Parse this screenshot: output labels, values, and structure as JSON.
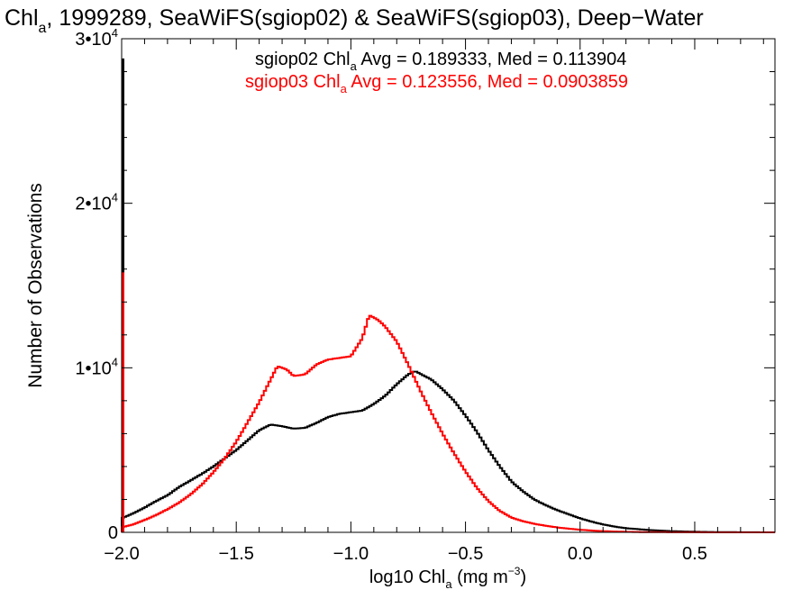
{
  "chart_data": {
    "type": "line",
    "style": "step histogram",
    "title": {
      "prefix": "Chl",
      "sub": "a",
      "suffix": ", 1999289, SeaWiFS(sgiop02) & SeaWiFS(sgiop03), Deep−Water"
    },
    "xlabel": {
      "prefix": "log10 Chl",
      "sub": "a",
      "mid": " (mg m",
      "sup": "−3",
      "end": ")"
    },
    "ylabel": "Number of Observations",
    "xlim": [
      -2.0,
      0.85
    ],
    "ylim": [
      0,
      30000
    ],
    "x_ticks": [
      {
        "v": -2.0,
        "label": "−2.0"
      },
      {
        "v": -1.5,
        "label": "−1.5"
      },
      {
        "v": -1.0,
        "label": "−1.0"
      },
      {
        "v": -0.5,
        "label": "−0.5"
      },
      {
        "v": 0.0,
        "label": "0.0"
      },
      {
        "v": 0.5,
        "label": "0.5"
      }
    ],
    "y_ticks": [
      {
        "v": 0,
        "base": "0",
        "exp": ""
      },
      {
        "v": 10000,
        "base": "1•10",
        "exp": "4"
      },
      {
        "v": 20000,
        "base": "2•10",
        "exp": "4"
      },
      {
        "v": 30000,
        "base": "3•10",
        "exp": "4"
      }
    ],
    "grid": false,
    "legend_position": "top-right",
    "series": [
      {
        "name": "sgiop02",
        "color": "#000000",
        "legend": {
          "prefix": "sgiop02 Chl",
          "sub": "a",
          "suffix": " Avg = 0.189333, Med = 0.113904"
        },
        "spike": {
          "x": -2.0,
          "y": 28800
        },
        "points": [
          [
            -2.0,
            850
          ],
          [
            -1.95,
            1150
          ],
          [
            -1.9,
            1500
          ],
          [
            -1.85,
            1900
          ],
          [
            -1.8,
            2250
          ],
          [
            -1.75,
            2750
          ],
          [
            -1.7,
            3150
          ],
          [
            -1.65,
            3550
          ],
          [
            -1.6,
            4000
          ],
          [
            -1.55,
            4500
          ],
          [
            -1.5,
            5000
          ],
          [
            -1.45,
            5600
          ],
          [
            -1.4,
            6200
          ],
          [
            -1.35,
            6550
          ],
          [
            -1.3,
            6450
          ],
          [
            -1.25,
            6300
          ],
          [
            -1.2,
            6350
          ],
          [
            -1.15,
            6650
          ],
          [
            -1.1,
            7000
          ],
          [
            -1.05,
            7200
          ],
          [
            -1.0,
            7300
          ],
          [
            -0.95,
            7400
          ],
          [
            -0.9,
            7800
          ],
          [
            -0.85,
            8300
          ],
          [
            -0.8,
            9000
          ],
          [
            -0.75,
            9600
          ],
          [
            -0.72,
            9800
          ],
          [
            -0.65,
            9300
          ],
          [
            -0.6,
            8700
          ],
          [
            -0.55,
            8000
          ],
          [
            -0.5,
            7100
          ],
          [
            -0.45,
            6100
          ],
          [
            -0.4,
            5000
          ],
          [
            -0.35,
            4000
          ],
          [
            -0.3,
            3100
          ],
          [
            -0.25,
            2500
          ],
          [
            -0.2,
            2000
          ],
          [
            -0.15,
            1650
          ],
          [
            -0.1,
            1350
          ],
          [
            -0.05,
            1100
          ],
          [
            0.0,
            850
          ],
          [
            0.05,
            650
          ],
          [
            0.1,
            480
          ],
          [
            0.15,
            350
          ],
          [
            0.2,
            250
          ],
          [
            0.3,
            140
          ],
          [
            0.4,
            70
          ],
          [
            0.5,
            35
          ],
          [
            0.6,
            15
          ],
          [
            0.7,
            6
          ],
          [
            0.85,
            0
          ]
        ]
      },
      {
        "name": "sgiop03",
        "color": "#ff0000",
        "legend": {
          "prefix": "sgiop03 Chl",
          "sub": "a",
          "suffix": " Avg = 0.123556, Med = 0.0903859"
        },
        "spike": {
          "x": -2.0,
          "y": 15800
        },
        "points": [
          [
            -2.0,
            300
          ],
          [
            -1.95,
            480
          ],
          [
            -1.9,
            750
          ],
          [
            -1.85,
            1050
          ],
          [
            -1.8,
            1400
          ],
          [
            -1.75,
            1800
          ],
          [
            -1.7,
            2300
          ],
          [
            -1.65,
            2900
          ],
          [
            -1.6,
            3650
          ],
          [
            -1.55,
            4500
          ],
          [
            -1.5,
            5500
          ],
          [
            -1.45,
            6700
          ],
          [
            -1.4,
            7900
          ],
          [
            -1.35,
            9300
          ],
          [
            -1.32,
            10100
          ],
          [
            -1.28,
            9900
          ],
          [
            -1.25,
            9500
          ],
          [
            -1.2,
            9600
          ],
          [
            -1.15,
            10200
          ],
          [
            -1.1,
            10500
          ],
          [
            -1.05,
            10600
          ],
          [
            -1.0,
            10700
          ],
          [
            -0.95,
            11800
          ],
          [
            -0.92,
            13200
          ],
          [
            -0.88,
            12900
          ],
          [
            -0.85,
            12500
          ],
          [
            -0.8,
            11600
          ],
          [
            -0.75,
            10200
          ],
          [
            -0.7,
            8700
          ],
          [
            -0.65,
            7300
          ],
          [
            -0.6,
            6000
          ],
          [
            -0.55,
            4800
          ],
          [
            -0.5,
            3700
          ],
          [
            -0.45,
            2700
          ],
          [
            -0.4,
            1900
          ],
          [
            -0.35,
            1300
          ],
          [
            -0.3,
            900
          ],
          [
            -0.25,
            680
          ],
          [
            -0.2,
            520
          ],
          [
            -0.15,
            400
          ],
          [
            -0.1,
            300
          ],
          [
            -0.05,
            220
          ],
          [
            0.0,
            160
          ],
          [
            0.05,
            110
          ],
          [
            0.1,
            70
          ],
          [
            0.2,
            30
          ],
          [
            0.3,
            12
          ],
          [
            0.5,
            3
          ],
          [
            0.85,
            0
          ]
        ]
      }
    ]
  }
}
